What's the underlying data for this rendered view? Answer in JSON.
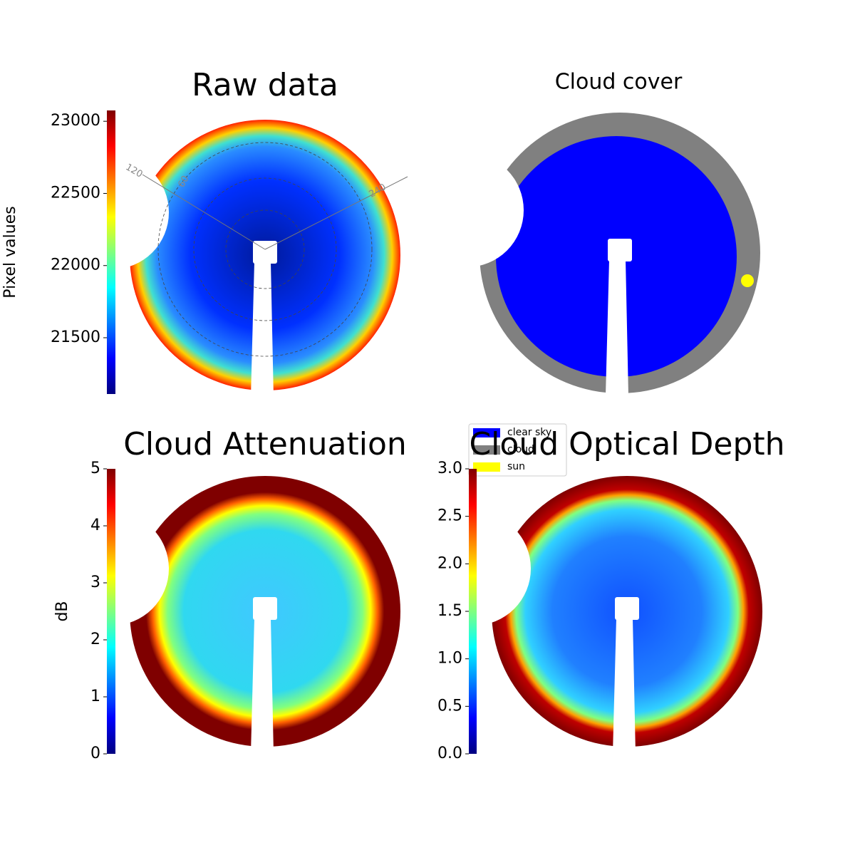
{
  "chart_data": [
    {
      "type": "image",
      "title": "Raw data",
      "colorbar": {
        "label": "Pixel values",
        "lim": [
          21110,
          23075
        ],
        "ticks": [
          21500,
          22000,
          22500,
          23000
        ],
        "colormap": "jet"
      },
      "annotations": [
        "120",
        "60",
        "240"
      ]
    },
    {
      "type": "image",
      "title": "Cloud cover",
      "series": [
        {
          "name": "clear sky",
          "color": "#0000ff"
        },
        {
          "name": "cloud",
          "color": "#808080"
        },
        {
          "name": "sun",
          "color": "#ffff00"
        }
      ]
    },
    {
      "type": "image",
      "title": "Cloud Attenuation",
      "colorbar": {
        "label": "dB",
        "lim": [
          0,
          5
        ],
        "ticks": [
          0,
          1,
          2,
          3,
          4,
          5
        ],
        "colormap": "jet"
      }
    },
    {
      "type": "image",
      "title": "Cloud Optical Depth",
      "colorbar": {
        "lim": [
          0,
          3
        ],
        "ticks": [
          {
            "value": 0,
            "label": "0.0"
          },
          0.5,
          {
            "value": 1,
            "label": "1.0"
          },
          1.5,
          {
            "value": 2,
            "label": "2.0"
          },
          2.5,
          {
            "value": 3,
            "label": "3.0"
          }
        ],
        "colormap": "jet"
      }
    }
  ]
}
